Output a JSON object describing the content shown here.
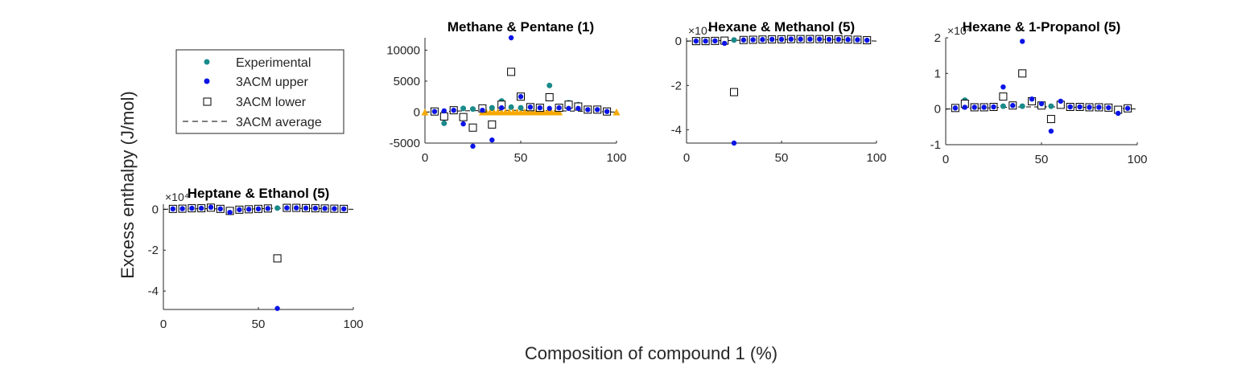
{
  "figure": {
    "ylabel": "Excess enthalpy (J/mol)",
    "xlabel": "Composition of compound 1 (%)"
  },
  "legend": {
    "placement": "left-of-first-panel",
    "entries": [
      {
        "label": "Experimental",
        "marker": "dot",
        "color": "#1a8a8a"
      },
      {
        "label": "3ACM upper",
        "marker": "dot",
        "color": "#0a14e6"
      },
      {
        "label": "3ACM lower",
        "marker": "open-square",
        "color": "#000000"
      },
      {
        "label": "3ACM average",
        "marker": "dashed-line",
        "color": "#000000"
      }
    ]
  },
  "colors": {
    "experimental": "#1a8a8a",
    "upper": "#0a14e6",
    "lower": "#000000",
    "average": "#000000",
    "extra_series": "#f5a800"
  },
  "chart_data": [
    {
      "type": "scatter",
      "title": "Methane & Pentane (1)",
      "xlim": [
        0,
        100
      ],
      "ylim": [
        -5000,
        12000
      ],
      "xticks": [
        "0",
        "50",
        "100"
      ],
      "yticks": [
        {
          "value": 10000,
          "label": "10000"
        },
        {
          "value": 5000,
          "label": "5000"
        },
        {
          "value": 0,
          "label": "0"
        },
        {
          "value": -5000,
          "label": "-5000"
        }
      ],
      "exponent_label": "",
      "series": {
        "experimental": [
          [
            5,
            100
          ],
          [
            10,
            -1800
          ],
          [
            15,
            200
          ],
          [
            20,
            600
          ],
          [
            25,
            500
          ],
          [
            30,
            400
          ],
          [
            35,
            700
          ],
          [
            40,
            1800
          ],
          [
            45,
            800
          ],
          [
            50,
            700
          ],
          [
            55,
            800
          ],
          [
            60,
            600
          ],
          [
            65,
            4300
          ],
          [
            70,
            500
          ],
          [
            75,
            1500
          ],
          [
            80,
            1200
          ],
          [
            85,
            400
          ],
          [
            90,
            400
          ],
          [
            95,
            100
          ]
        ],
        "upper": [
          [
            5,
            100
          ],
          [
            10,
            200
          ],
          [
            15,
            300
          ],
          [
            20,
            -1900
          ],
          [
            25,
            -5500
          ],
          [
            30,
            300
          ],
          [
            35,
            -4500
          ],
          [
            40,
            700
          ],
          [
            45,
            12000
          ],
          [
            50,
            2500
          ],
          [
            55,
            800
          ],
          [
            60,
            700
          ],
          [
            65,
            600
          ],
          [
            70,
            700
          ],
          [
            75,
            600
          ],
          [
            80,
            600
          ],
          [
            85,
            400
          ],
          [
            90,
            400
          ],
          [
            95,
            100
          ]
        ],
        "lower": [
          [
            5,
            100
          ],
          [
            10,
            -700
          ],
          [
            15,
            300
          ],
          [
            20,
            -800
          ],
          [
            25,
            -2500
          ],
          [
            30,
            600
          ],
          [
            35,
            -2000
          ],
          [
            40,
            1200
          ],
          [
            45,
            6500
          ],
          [
            50,
            2500
          ],
          [
            55,
            800
          ],
          [
            60,
            700
          ],
          [
            65,
            2400
          ],
          [
            70,
            700
          ],
          [
            75,
            1200
          ],
          [
            80,
            900
          ],
          [
            85,
            400
          ],
          [
            90,
            400
          ],
          [
            95,
            100
          ]
        ],
        "average": [
          [
            0,
            0
          ],
          [
            10,
            100
          ],
          [
            20,
            200
          ],
          [
            30,
            250
          ],
          [
            40,
            300
          ],
          [
            50,
            300
          ],
          [
            60,
            250
          ],
          [
            70,
            200
          ],
          [
            80,
            150
          ],
          [
            90,
            80
          ],
          [
            100,
            0
          ]
        ],
        "extra": [
          [
            0,
            0
          ],
          [
            30,
            0
          ],
          [
            32,
            0
          ],
          [
            34,
            0
          ],
          [
            36,
            0
          ],
          [
            38,
            0
          ],
          [
            40,
            0
          ],
          [
            42,
            0
          ],
          [
            44,
            0
          ],
          [
            46,
            0
          ],
          [
            48,
            0
          ],
          [
            50,
            0
          ],
          [
            52,
            0
          ],
          [
            54,
            0
          ],
          [
            56,
            0
          ],
          [
            58,
            0
          ],
          [
            60,
            0
          ],
          [
            62,
            0
          ],
          [
            64,
            0
          ],
          [
            66,
            0
          ],
          [
            68,
            0
          ],
          [
            70,
            0
          ],
          [
            100,
            0
          ]
        ]
      }
    },
    {
      "type": "scatter",
      "title": "Hexane & Methanol (5)",
      "xlim": [
        0,
        100
      ],
      "ylim": [
        -4.6,
        0.15
      ],
      "xticks": [
        "0",
        "50",
        "100"
      ],
      "yticks": [
        {
          "value": 0,
          "label": "0"
        },
        {
          "value": -2,
          "label": "-2"
        },
        {
          "value": -4,
          "label": "-4"
        }
      ],
      "exponent_label": "×10⁴",
      "series": {
        "experimental": [
          [
            5,
            0
          ],
          [
            10,
            0
          ],
          [
            15,
            0.01
          ],
          [
            20,
            0.02
          ],
          [
            25,
            0.05
          ],
          [
            30,
            0.06
          ],
          [
            35,
            0.07
          ],
          [
            40,
            0.08
          ],
          [
            45,
            0.08
          ],
          [
            50,
            0.09
          ],
          [
            55,
            0.09
          ],
          [
            60,
            0.09
          ],
          [
            65,
            0.09
          ],
          [
            70,
            0.09
          ],
          [
            75,
            0.08
          ],
          [
            80,
            0.08
          ],
          [
            85,
            0.07
          ],
          [
            90,
            0.06
          ],
          [
            95,
            0.04
          ]
        ],
        "upper": [
          [
            5,
            0
          ],
          [
            10,
            0
          ],
          [
            15,
            0.01
          ],
          [
            20,
            -0.1
          ],
          [
            25,
            -4.6
          ],
          [
            30,
            0.05
          ],
          [
            35,
            0.06
          ],
          [
            40,
            0.07
          ],
          [
            45,
            0.08
          ],
          [
            50,
            0.08
          ],
          [
            55,
            0.09
          ],
          [
            60,
            0.09
          ],
          [
            65,
            0.09
          ],
          [
            70,
            0.09
          ],
          [
            75,
            0.08
          ],
          [
            80,
            0.08
          ],
          [
            85,
            0.07
          ],
          [
            90,
            0.06
          ],
          [
            95,
            0.04
          ]
        ],
        "lower": [
          [
            5,
            0
          ],
          [
            10,
            0
          ],
          [
            15,
            0.01
          ],
          [
            20,
            0.02
          ],
          [
            25,
            -2.3
          ],
          [
            30,
            0.05
          ],
          [
            35,
            0.06
          ],
          [
            40,
            0.07
          ],
          [
            45,
            0.08
          ],
          [
            50,
            0.08
          ],
          [
            55,
            0.09
          ],
          [
            60,
            0.09
          ],
          [
            65,
            0.09
          ],
          [
            70,
            0.09
          ],
          [
            75,
            0.08
          ],
          [
            80,
            0.08
          ],
          [
            85,
            0.07
          ],
          [
            90,
            0.06
          ],
          [
            95,
            0.04
          ]
        ],
        "average": [
          [
            0,
            0
          ],
          [
            20,
            0.02
          ],
          [
            40,
            0.06
          ],
          [
            60,
            0.08
          ],
          [
            80,
            0.07
          ],
          [
            100,
            0
          ]
        ]
      }
    },
    {
      "type": "scatter",
      "title": "Hexane & 1-Propanol (5)",
      "xlim": [
        0,
        100
      ],
      "ylim": [
        -1,
        2
      ],
      "xticks": [
        "0",
        "50",
        "100"
      ],
      "yticks": [
        {
          "value": 2,
          "label": "2"
        },
        {
          "value": 1,
          "label": "1"
        },
        {
          "value": 0,
          "label": "0"
        },
        {
          "value": -1,
          "label": "-1"
        }
      ],
      "exponent_label": "×10⁴",
      "series": {
        "experimental": [
          [
            5,
            0.03
          ],
          [
            10,
            0.25
          ],
          [
            15,
            0.05
          ],
          [
            20,
            0.05
          ],
          [
            25,
            0.06
          ],
          [
            30,
            0.08
          ],
          [
            35,
            0.1
          ],
          [
            40,
            0.08
          ],
          [
            45,
            0.2
          ],
          [
            50,
            0.08
          ],
          [
            55,
            0.08
          ],
          [
            60,
            0.15
          ],
          [
            65,
            0.06
          ],
          [
            70,
            0.06
          ],
          [
            75,
            0.05
          ],
          [
            80,
            0.05
          ],
          [
            85,
            0.04
          ],
          [
            90,
            -0.05
          ],
          [
            95,
            0.02
          ]
        ],
        "upper": [
          [
            5,
            0.03
          ],
          [
            10,
            0.05
          ],
          [
            15,
            0.05
          ],
          [
            20,
            0.05
          ],
          [
            25,
            0.06
          ],
          [
            30,
            0.62
          ],
          [
            35,
            0.1
          ],
          [
            40,
            1.9
          ],
          [
            45,
            0.28
          ],
          [
            50,
            0.15
          ],
          [
            55,
            -0.62
          ],
          [
            60,
            0.22
          ],
          [
            65,
            0.06
          ],
          [
            70,
            0.06
          ],
          [
            75,
            0.05
          ],
          [
            80,
            0.05
          ],
          [
            85,
            0.04
          ],
          [
            90,
            -0.12
          ],
          [
            95,
            0.02
          ]
        ],
        "lower": [
          [
            5,
            0.03
          ],
          [
            10,
            0.15
          ],
          [
            15,
            0.05
          ],
          [
            20,
            0.05
          ],
          [
            25,
            0.06
          ],
          [
            30,
            0.35
          ],
          [
            35,
            0.1
          ],
          [
            40,
            1.0
          ],
          [
            45,
            0.22
          ],
          [
            50,
            0.1
          ],
          [
            55,
            -0.28
          ],
          [
            60,
            0.12
          ],
          [
            65,
            0.06
          ],
          [
            70,
            0.06
          ],
          [
            75,
            0.05
          ],
          [
            80,
            0.05
          ],
          [
            85,
            0.04
          ],
          [
            90,
            -0.02
          ],
          [
            95,
            0.02
          ]
        ],
        "average": [
          [
            0,
            0
          ],
          [
            20,
            0.03
          ],
          [
            40,
            0.06
          ],
          [
            60,
            0.06
          ],
          [
            80,
            0.04
          ],
          [
            100,
            0
          ]
        ]
      }
    },
    {
      "type": "scatter",
      "title": "Heptane & Ethanol (5)",
      "xlim": [
        0,
        100
      ],
      "ylim": [
        -4.9,
        0.25
      ],
      "xticks": [
        "0",
        "50",
        "100"
      ],
      "yticks": [
        {
          "value": 0,
          "label": "0"
        },
        {
          "value": -2,
          "label": "-2"
        },
        {
          "value": -4,
          "label": "-4"
        }
      ],
      "exponent_label": "×10⁴",
      "series": {
        "experimental": [
          [
            5,
            0.02
          ],
          [
            10,
            0.03
          ],
          [
            15,
            0.05
          ],
          [
            20,
            0.05
          ],
          [
            25,
            0.06
          ],
          [
            30,
            0.02
          ],
          [
            35,
            -0.05
          ],
          [
            40,
            -0.02
          ],
          [
            45,
            0
          ],
          [
            50,
            0.02
          ],
          [
            55,
            0.04
          ],
          [
            60,
            0.06
          ],
          [
            65,
            0.07
          ],
          [
            70,
            0.07
          ],
          [
            75,
            0.06
          ],
          [
            80,
            0.05
          ],
          [
            85,
            0.04
          ],
          [
            90,
            0.03
          ],
          [
            95,
            0.02
          ]
        ],
        "upper": [
          [
            5,
            0.02
          ],
          [
            10,
            0.03
          ],
          [
            15,
            0.05
          ],
          [
            20,
            0.05
          ],
          [
            25,
            0.1
          ],
          [
            30,
            0.02
          ],
          [
            35,
            -0.15
          ],
          [
            40,
            -0.02
          ],
          [
            45,
            0
          ],
          [
            50,
            0.02
          ],
          [
            55,
            0.04
          ],
          [
            60,
            -4.85
          ],
          [
            65,
            0.07
          ],
          [
            70,
            0.07
          ],
          [
            75,
            0.06
          ],
          [
            80,
            0.05
          ],
          [
            85,
            0.04
          ],
          [
            90,
            0.03
          ],
          [
            95,
            0.02
          ]
        ],
        "lower": [
          [
            5,
            0.02
          ],
          [
            10,
            0.03
          ],
          [
            15,
            0.05
          ],
          [
            20,
            0.05
          ],
          [
            25,
            0.08
          ],
          [
            30,
            0.02
          ],
          [
            35,
            -0.08
          ],
          [
            40,
            -0.02
          ],
          [
            45,
            0
          ],
          [
            50,
            0.02
          ],
          [
            55,
            0.04
          ],
          [
            60,
            -2.4
          ],
          [
            65,
            0.07
          ],
          [
            70,
            0.07
          ],
          [
            75,
            0.06
          ],
          [
            80,
            0.05
          ],
          [
            85,
            0.04
          ],
          [
            90,
            0.03
          ],
          [
            95,
            0.02
          ]
        ],
        "average": [
          [
            0,
            0
          ],
          [
            20,
            0.03
          ],
          [
            40,
            0.0
          ],
          [
            60,
            0.05
          ],
          [
            80,
            0.04
          ],
          [
            100,
            0
          ]
        ]
      }
    }
  ]
}
